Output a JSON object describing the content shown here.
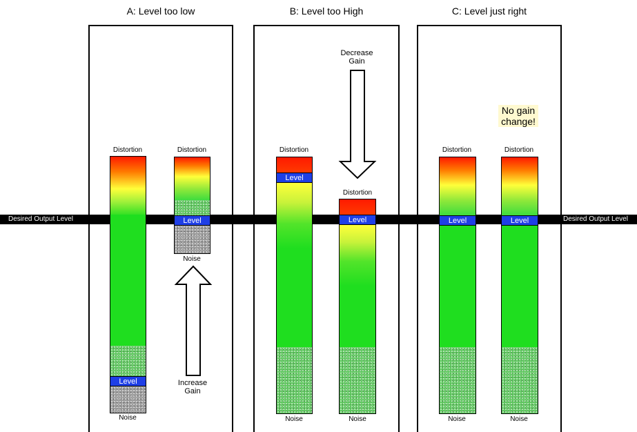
{
  "colors": {
    "distortion": "#ff1a00",
    "warning": "#ffff3a",
    "signal": "#1fde1f",
    "level": "#1f3fe6",
    "desired_line": "#000000",
    "note_bg": "#fff9d0"
  },
  "desired_output_label": "Desired Output Level",
  "panels": [
    {
      "title": "A: Level too low",
      "arrow": {
        "direction": "up",
        "label": "Increase\nGain"
      },
      "meters": [
        {
          "top_label": "Distortion",
          "bottom_label": "Noise",
          "level_label": "Level"
        },
        {
          "top_label": "Distortion",
          "bottom_label": "Noise",
          "level_label": "Level"
        }
      ]
    },
    {
      "title": "B: Level too High",
      "arrow": {
        "direction": "down",
        "label": "Decrease\nGain"
      },
      "meters": [
        {
          "top_label": "Distortion",
          "bottom_label": "Noise",
          "level_label": "Level"
        },
        {
          "top_label": "Distortion",
          "bottom_label": "Noise",
          "level_label": "Level"
        }
      ]
    },
    {
      "title": "C: Level just right",
      "note": "No gain\nchange!",
      "meters": [
        {
          "top_label": "Distortion",
          "bottom_label": "Noise",
          "level_label": "Level"
        },
        {
          "top_label": "Distortion",
          "bottom_label": "Noise",
          "level_label": "Level"
        }
      ]
    }
  ]
}
